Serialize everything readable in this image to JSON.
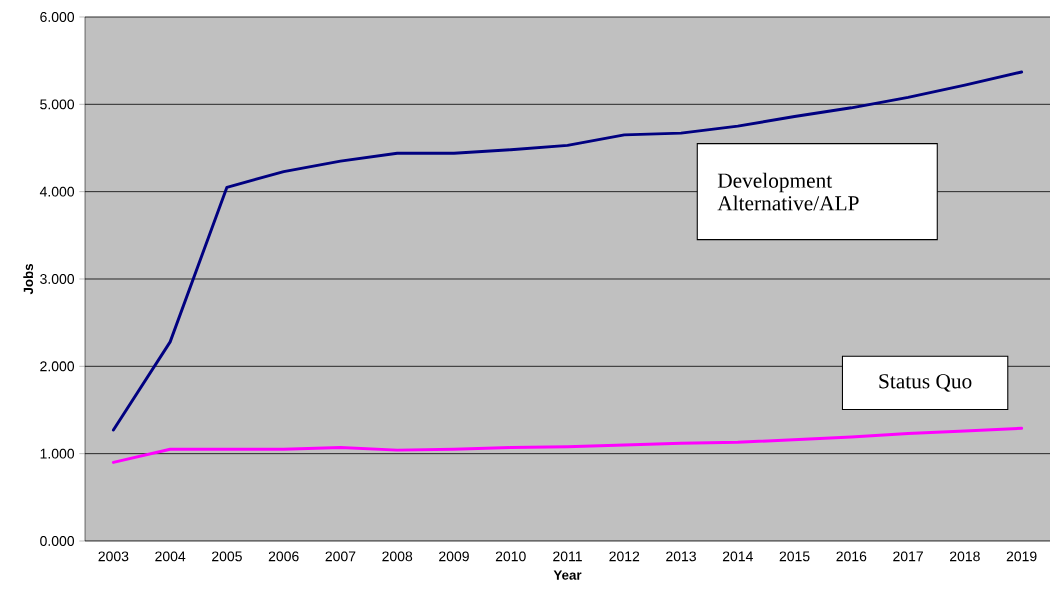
{
  "chart_data": {
    "type": "line",
    "xlabel": "Year",
    "ylabel": "Jobs",
    "categories": [
      "2003",
      "2004",
      "2005",
      "2006",
      "2007",
      "2008",
      "2009",
      "2010",
      "2011",
      "2012",
      "2013",
      "2014",
      "2015",
      "2016",
      "2017",
      "2018",
      "2019"
    ],
    "series": [
      {
        "name": "Development Alternative/ALP",
        "color": "#000080",
        "values": [
          1.27,
          2.28,
          4.05,
          4.23,
          4.35,
          4.44,
          4.44,
          4.48,
          4.53,
          4.65,
          4.67,
          4.75,
          4.86,
          4.96,
          5.08,
          5.22,
          5.37
        ]
      },
      {
        "name": "Status Quo",
        "color": "#ff00ff",
        "values": [
          0.9,
          1.05,
          1.05,
          1.05,
          1.07,
          1.04,
          1.05,
          1.07,
          1.08,
          1.1,
          1.12,
          1.13,
          1.16,
          1.19,
          1.23,
          1.26,
          1.29
        ]
      }
    ],
    "ylim": [
      0,
      6
    ],
    "yticks": [
      {
        "value": 0,
        "label": "0.000"
      },
      {
        "value": 1,
        "label": "1.000"
      },
      {
        "value": 2,
        "label": "2.000"
      },
      {
        "value": 3,
        "label": "3.000"
      },
      {
        "value": 4,
        "label": "4.000"
      },
      {
        "value": 5,
        "label": "5.000"
      },
      {
        "value": 6,
        "label": "6.000"
      }
    ],
    "grid": "y",
    "legend": false,
    "marker": "none",
    "line_style": "solid"
  }
}
